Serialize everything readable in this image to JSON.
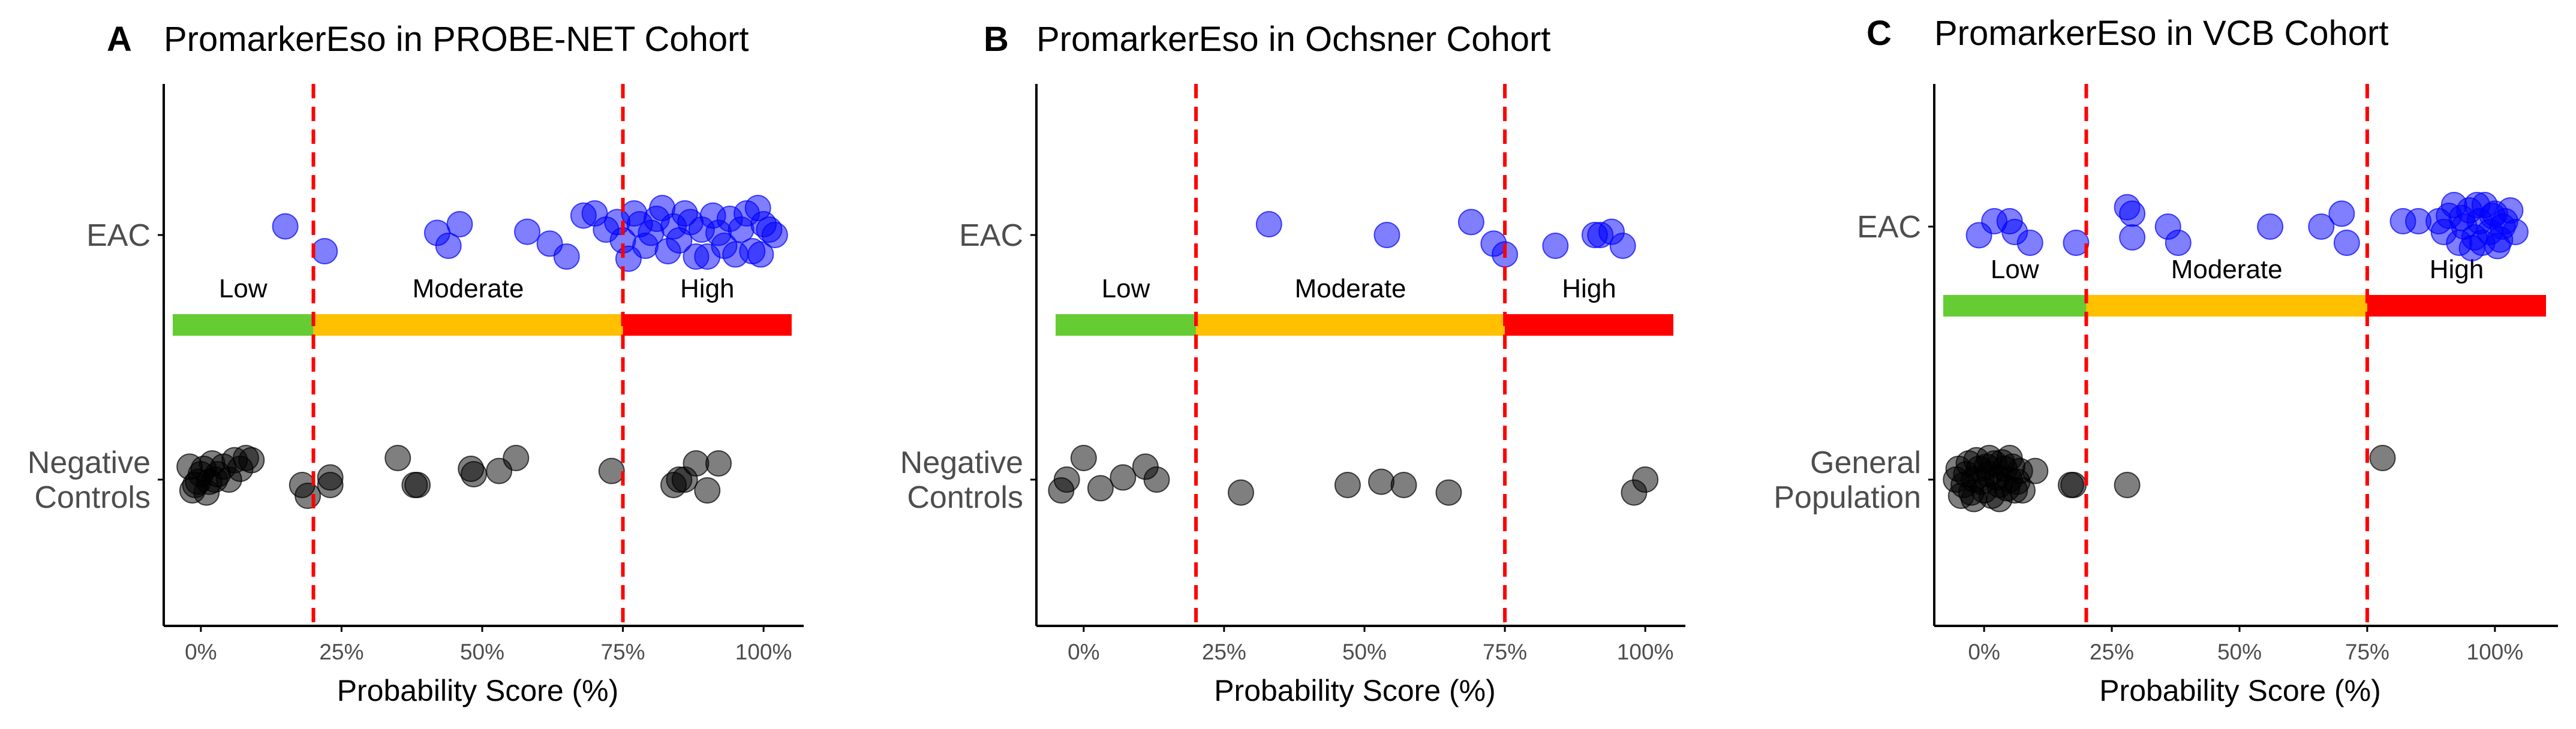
{
  "x_axis_title": "Probability Score (%)",
  "x_tick_labels": [
    "0%",
    "25%",
    "50%",
    "75%",
    "100%"
  ],
  "risk_band_labels": [
    "Low",
    "Moderate",
    "High"
  ],
  "colors": {
    "eac_points": "#0000ff",
    "control_points": "#000000",
    "threshold_line": "#ff0000",
    "band_low": "#66cc33",
    "band_moderate": "#ffc000",
    "band_high": "#ff0000",
    "axis": "#000000",
    "text": "#4d4d4d"
  },
  "chart_data": [
    {
      "type": "scatter",
      "panel": "A",
      "title": "PromarkerEso in PROBE-NET Cohort",
      "xlabel": "Probability Score (%)",
      "xlim": [
        -5,
        105
      ],
      "x_ticks": [
        0,
        25,
        50,
        75,
        100
      ],
      "thresholds": [
        20,
        75
      ],
      "categories": [
        "EAC",
        "Negative Controls"
      ],
      "category_labels": [
        [
          "EAC"
        ],
        [
          "Negative",
          "Controls"
        ]
      ],
      "bands": [
        {
          "label": "Low",
          "from": -5,
          "to": 20
        },
        {
          "label": "Moderate",
          "from": 20,
          "to": 75
        },
        {
          "label": "High",
          "from": 75,
          "to": 105
        }
      ],
      "series": [
        {
          "name": "EAC",
          "color": "#0000ff",
          "points": [
            [
              15,
              0.08
            ],
            [
              22,
              -0.15
            ],
            [
              42,
              0.02
            ],
            [
              44,
              -0.1
            ],
            [
              46,
              0.1
            ],
            [
              58,
              0.03
            ],
            [
              62,
              -0.08
            ],
            [
              65,
              -0.2
            ],
            [
              68,
              0.18
            ],
            [
              70,
              0.2
            ],
            [
              72,
              0.05
            ],
            [
              74,
              0.12
            ],
            [
              75,
              -0.05
            ],
            [
              76,
              -0.22
            ],
            [
              77,
              0.2
            ],
            [
              78,
              0.1
            ],
            [
              79,
              -0.1
            ],
            [
              80,
              0.02
            ],
            [
              81,
              0.15
            ],
            [
              82,
              0.25
            ],
            [
              83,
              -0.15
            ],
            [
              84,
              0.08
            ],
            [
              85,
              -0.05
            ],
            [
              86,
              0.2
            ],
            [
              87,
              0.12
            ],
            [
              88,
              -0.2
            ],
            [
              89,
              0.05
            ],
            [
              90,
              -0.2
            ],
            [
              91,
              0.18
            ],
            [
              92,
              0.02
            ],
            [
              93,
              -0.1
            ],
            [
              94,
              0.15
            ],
            [
              95,
              -0.18
            ],
            [
              96,
              0.05
            ],
            [
              97,
              0.2
            ],
            [
              98,
              -0.15
            ],
            [
              99,
              0.25
            ],
            [
              99.5,
              -0.18
            ],
            [
              100,
              0.1
            ],
            [
              101,
              0.05
            ],
            [
              102,
              0.0
            ]
          ]
        },
        {
          "name": "Negative Controls",
          "color": "#000000",
          "points": [
            [
              -2,
              0.12
            ],
            [
              -1,
              -0.05
            ],
            [
              0,
              0.05
            ],
            [
              1,
              -0.12
            ],
            [
              2,
              0.15
            ],
            [
              -0.5,
              -0.02
            ],
            [
              3,
              0.05
            ],
            [
              4,
              0.12
            ],
            [
              5,
              0.0
            ],
            [
              6,
              0.18
            ],
            [
              7,
              0.1
            ],
            [
              8,
              0.2
            ],
            [
              9,
              0.18
            ],
            [
              0.5,
              0.1
            ],
            [
              1.5,
              -0.02
            ],
            [
              -1.5,
              -0.1
            ],
            [
              2.5,
              0.0
            ],
            [
              18,
              -0.05
            ],
            [
              19,
              -0.15
            ],
            [
              23,
              0.02
            ],
            [
              23,
              -0.05
            ],
            [
              35,
              0.2
            ],
            [
              38,
              -0.05
            ],
            [
              38.5,
              -0.05
            ],
            [
              48,
              0.1
            ],
            [
              48.5,
              0.05
            ],
            [
              53,
              0.08
            ],
            [
              56,
              0.2
            ],
            [
              73,
              0.08
            ],
            [
              84,
              -0.05
            ],
            [
              85,
              0.0
            ],
            [
              86,
              0.0
            ],
            [
              88,
              0.15
            ],
            [
              90,
              -0.1
            ],
            [
              92,
              0.15
            ]
          ]
        }
      ]
    },
    {
      "type": "scatter",
      "panel": "B",
      "title": "PromarkerEso in Ochsner Cohort",
      "xlabel": "Probability Score (%)",
      "xlim": [
        -5,
        105
      ],
      "x_ticks": [
        0,
        25,
        50,
        75,
        100
      ],
      "thresholds": [
        20,
        75
      ],
      "categories": [
        "EAC",
        "Negative Controls"
      ],
      "category_labels": [
        [
          "EAC"
        ],
        [
          "Negative",
          "Controls"
        ]
      ],
      "bands": [
        {
          "label": "Low",
          "from": -5,
          "to": 20
        },
        {
          "label": "Moderate",
          "from": 20,
          "to": 75
        },
        {
          "label": "High",
          "from": 75,
          "to": 105
        }
      ],
      "series": [
        {
          "name": "EAC",
          "color": "#0000ff",
          "points": [
            [
              33,
              0.1
            ],
            [
              54,
              0.0
            ],
            [
              69,
              0.12
            ],
            [
              73,
              -0.08
            ],
            [
              75,
              -0.18
            ],
            [
              84,
              -0.1
            ],
            [
              91,
              0.0
            ],
            [
              92,
              0.0
            ],
            [
              94,
              0.03
            ],
            [
              96,
              -0.1
            ]
          ]
        },
        {
          "name": "Negative Controls",
          "color": "#000000",
          "points": [
            [
              -4,
              -0.1
            ],
            [
              -3,
              0.0
            ],
            [
              0,
              0.2
            ],
            [
              3,
              -0.08
            ],
            [
              7,
              0.02
            ],
            [
              11,
              0.12
            ],
            [
              13,
              0.0
            ],
            [
              28,
              -0.12
            ],
            [
              47,
              -0.05
            ],
            [
              53,
              -0.02
            ],
            [
              57,
              -0.05
            ],
            [
              65,
              -0.12
            ],
            [
              98,
              -0.12
            ],
            [
              100,
              0.0
            ]
          ]
        }
      ]
    },
    {
      "type": "scatter",
      "panel": "C",
      "title": "PromarkerEso in VCB Cohort",
      "xlabel": "Probability Score (%)",
      "xlim": [
        -8,
        110
      ],
      "x_ticks": [
        0,
        25,
        50,
        75,
        100
      ],
      "thresholds": [
        20,
        75
      ],
      "categories": [
        "EAC",
        "General Population"
      ],
      "category_labels": [
        [
          "EAC"
        ],
        [
          "General",
          "Population"
        ]
      ],
      "bands": [
        {
          "label": "Low",
          "from": -8,
          "to": 20
        },
        {
          "label": "Moderate",
          "from": 20,
          "to": 75
        },
        {
          "label": "High",
          "from": 75,
          "to": 110
        }
      ],
      "series": [
        {
          "name": "EAC",
          "color": "#0000ff",
          "points": [
            [
              -1,
              -0.08
            ],
            [
              2,
              0.05
            ],
            [
              5,
              0.05
            ],
            [
              6,
              -0.05
            ],
            [
              9,
              -0.15
            ],
            [
              18,
              -0.15
            ],
            [
              28,
              0.18
            ],
            [
              29,
              0.12
            ],
            [
              29,
              -0.1
            ],
            [
              36,
              0.0
            ],
            [
              38,
              -0.15
            ],
            [
              56,
              0.0
            ],
            [
              66,
              0.0
            ],
            [
              70,
              0.12
            ],
            [
              71,
              -0.15
            ],
            [
              82,
              0.05
            ],
            [
              85,
              0.05
            ],
            [
              89,
              0.05
            ],
            [
              90,
              -0.05
            ],
            [
              91,
              0.1
            ],
            [
              92,
              0.2
            ],
            [
              93,
              -0.15
            ],
            [
              94,
              0.0
            ],
            [
              95,
              0.15
            ],
            [
              96,
              -0.1
            ],
            [
              97,
              0.05
            ],
            [
              98,
              0.2
            ],
            [
              99,
              -0.05
            ],
            [
              100,
              0.12
            ],
            [
              101,
              -0.12
            ],
            [
              102,
              0.05
            ],
            [
              103,
              0.15
            ],
            [
              104,
              -0.05
            ],
            [
              93.5,
              0.08
            ],
            [
              96.5,
              0.2
            ],
            [
              99.5,
              0.1
            ],
            [
              101.5,
              0.0
            ],
            [
              95.5,
              -0.2
            ],
            [
              100.5,
              -0.18
            ],
            [
              97.5,
              -0.15
            ]
          ]
        },
        {
          "name": "General Population",
          "color": "#000000",
          "points": [
            [
              -5,
              0.1
            ],
            [
              -4,
              -0.05
            ],
            [
              -3,
              0.15
            ],
            [
              -2,
              0.0
            ],
            [
              -1,
              0.1
            ],
            [
              0,
              -0.1
            ],
            [
              1,
              0.05
            ],
            [
              2,
              0.15
            ],
            [
              3,
              -0.05
            ],
            [
              4,
              0.1
            ],
            [
              5,
              0.0
            ],
            [
              6,
              -0.1
            ],
            [
              7,
              0.08
            ],
            [
              -4.5,
              -0.15
            ],
            [
              -3.5,
              0.05
            ],
            [
              -2.5,
              -0.12
            ],
            [
              -1.5,
              0.18
            ],
            [
              -0.5,
              -0.02
            ],
            [
              0.5,
              0.12
            ],
            [
              1.5,
              -0.15
            ],
            [
              2.5,
              0.02
            ],
            [
              3.5,
              0.16
            ],
            [
              4.5,
              -0.08
            ],
            [
              5.5,
              0.12
            ],
            [
              6.5,
              -0.02
            ],
            [
              -5.5,
              0.0
            ],
            [
              -2,
              -0.18
            ],
            [
              1,
              0.2
            ],
            [
              3,
              -0.18
            ],
            [
              5,
              0.2
            ],
            [
              7.5,
              -0.1
            ],
            [
              10,
              0.08
            ],
            [
              17,
              -0.05
            ],
            [
              17.5,
              -0.05
            ],
            [
              28,
              -0.05
            ],
            [
              78,
              0.2
            ]
          ]
        }
      ]
    }
  ]
}
